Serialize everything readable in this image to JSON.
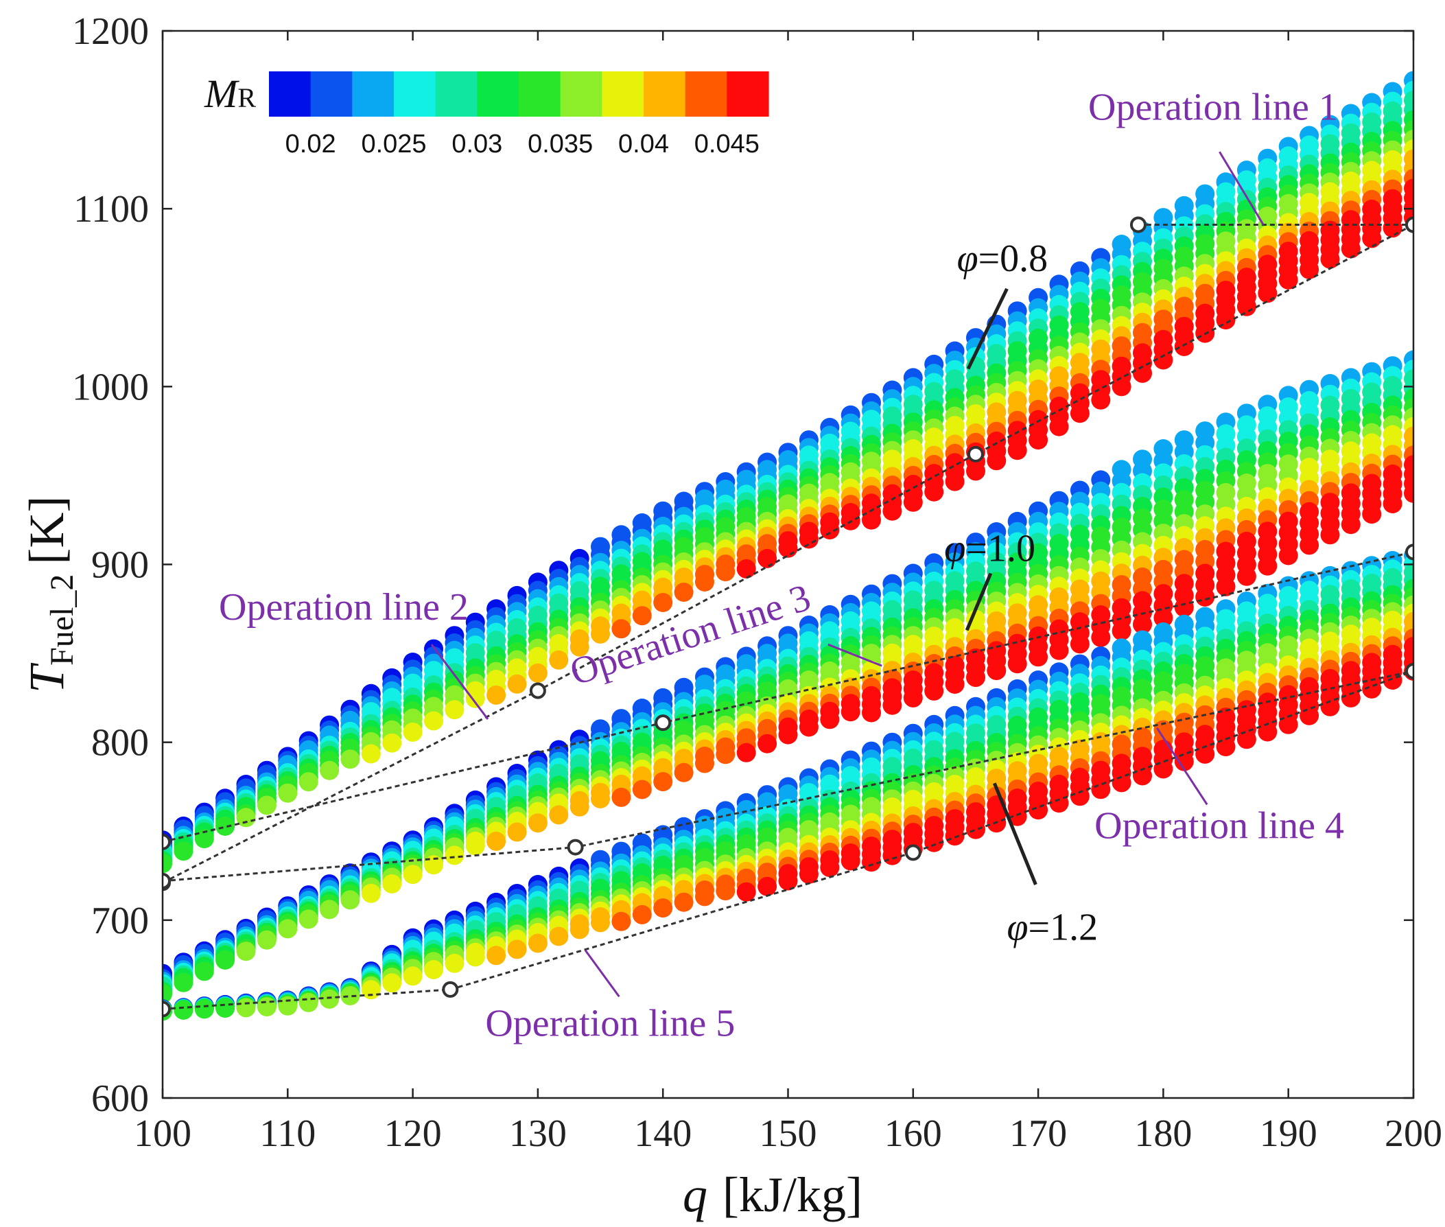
{
  "chart_data": {
    "type": "scatter",
    "xlabel": {
      "symbol": "q",
      "units": "[kJ/kg]"
    },
    "ylabel": {
      "symbol": "T",
      "subscript": "Fuel_2",
      "units": "[K]"
    },
    "xlim": [
      100,
      200
    ],
    "ylim": [
      600,
      1200
    ],
    "xticks": [
      "100",
      "110",
      "120",
      "130",
      "140",
      "150",
      "160",
      "170",
      "180",
      "190",
      "200"
    ],
    "yticks": [
      "600",
      "700",
      "800",
      "900",
      "1000",
      "1100",
      "1200"
    ],
    "colorbar": {
      "title_main": "M",
      "title_sub": "R",
      "range": [
        0.0175,
        0.0475
      ],
      "tick_labels": [
        "0.02",
        "0.025",
        "0.03",
        "0.035",
        "0.04",
        "0.045"
      ],
      "tick_values": [
        0.02,
        0.025,
        0.03,
        0.035,
        0.04,
        0.045
      ],
      "colors": [
        "#0010e8",
        "#0a55f0",
        "#0aa8f2",
        "#12f0e6",
        "#10e6a0",
        "#0ae646",
        "#2ae62a",
        "#8cee28",
        "#e6f20a",
        "#ffb400",
        "#ff5a00",
        "#ff0a0a"
      ]
    },
    "bands": [
      {
        "name": "φ=0.8",
        "upper": [
          [
            100,
            745
          ],
          [
            110,
            792
          ],
          [
            120,
            845
          ],
          [
            130,
            890
          ],
          [
            140,
            930
          ],
          [
            150,
            963
          ],
          [
            160,
            1005
          ],
          [
            170,
            1050
          ],
          [
            180,
            1095
          ],
          [
            190,
            1135
          ],
          [
            200,
            1172
          ]
        ],
        "lower": [
          [
            100,
            722
          ],
          [
            110,
            760
          ],
          [
            120,
            790
          ],
          [
            130,
            825
          ],
          [
            140,
            870
          ],
          [
            150,
            905
          ],
          [
            160,
            935
          ],
          [
            170,
            970
          ],
          [
            180,
            1015
          ],
          [
            190,
            1060
          ],
          [
            200,
            1095
          ]
        ]
      },
      {
        "name": "φ=1.0",
        "upper": [
          [
            100,
            670
          ],
          [
            110,
            708
          ],
          [
            120,
            745
          ],
          [
            130,
            790
          ],
          [
            140,
            825
          ],
          [
            150,
            860
          ],
          [
            160,
            895
          ],
          [
            170,
            930
          ],
          [
            180,
            965
          ],
          [
            190,
            995
          ],
          [
            200,
            1015
          ]
        ],
        "lower": [
          [
            100,
            650
          ],
          [
            110,
            688
          ],
          [
            120,
            718
          ],
          [
            130,
            745
          ],
          [
            140,
            770
          ],
          [
            150,
            800
          ],
          [
            160,
            825
          ],
          [
            170,
            848
          ],
          [
            180,
            870
          ],
          [
            190,
            905
          ],
          [
            200,
            940
          ]
        ]
      },
      {
        "name": "φ=1.2",
        "upper": [
          [
            100,
            650
          ],
          [
            110,
            655
          ],
          [
            115,
            662
          ],
          [
            120,
            690
          ],
          [
            130,
            720
          ],
          [
            140,
            748
          ],
          [
            150,
            775
          ],
          [
            160,
            805
          ],
          [
            170,
            835
          ],
          [
            180,
            862
          ],
          [
            190,
            888
          ],
          [
            200,
            905
          ]
        ],
        "lower": [
          [
            100,
            648
          ],
          [
            110,
            650
          ],
          [
            115,
            655
          ],
          [
            120,
            660
          ],
          [
            130,
            678
          ],
          [
            140,
            700
          ],
          [
            150,
            718
          ],
          [
            160,
            740
          ],
          [
            170,
            762
          ],
          [
            180,
            785
          ],
          [
            190,
            810
          ],
          [
            200,
            840
          ]
        ]
      }
    ],
    "operation_lines": [
      {
        "name": "Operation line 1",
        "points": [
          [
            178,
            1091
          ],
          [
            200,
            1091
          ]
        ]
      },
      {
        "name": "Operation line 2",
        "points": [
          [
            100,
            721
          ],
          [
            130,
            829
          ],
          [
            165,
            962
          ],
          [
            200,
            1091
          ]
        ]
      },
      {
        "name": "Operation line 3",
        "points": [
          [
            100,
            744
          ],
          [
            140,
            811
          ],
          [
            200,
            907
          ]
        ]
      },
      {
        "name": "Operation line 4",
        "points": [
          [
            100,
            722
          ],
          [
            133,
            741
          ],
          [
            200,
            840
          ]
        ]
      },
      {
        "name": "Operation line 5",
        "points": [
          [
            100,
            650
          ],
          [
            123,
            661
          ],
          [
            160,
            738
          ],
          [
            200,
            840
          ]
        ]
      }
    ],
    "annotations": [
      {
        "text": "Operation line 1",
        "kind": "op",
        "x": 174,
        "y": 1150,
        "pointer": [
          [
            184.5,
            1132
          ],
          [
            188,
            1091
          ]
        ]
      },
      {
        "text": "Operation line 2",
        "kind": "op",
        "x": 104.5,
        "y": 869,
        "pointer": [
          [
            121.5,
            855
          ],
          [
            126,
            813
          ]
        ]
      },
      {
        "text": "Operation line 3",
        "kind": "op",
        "x": 133,
        "y": 832,
        "rotate": -18,
        "pointer": [
          [
            153.2,
            855
          ],
          [
            157.5,
            843
          ]
        ]
      },
      {
        "text": "Operation line 4",
        "kind": "op",
        "x": 174.5,
        "y": 746,
        "pointer": [
          [
            179.5,
            808
          ],
          [
            183.5,
            765
          ]
        ]
      },
      {
        "text": "Operation line 5",
        "kind": "op",
        "x": 125.8,
        "y": 635,
        "pointer": [
          [
            133.8,
            683
          ],
          [
            136.5,
            657
          ]
        ]
      },
      {
        "text": "φ=0.8",
        "kind": "phi",
        "x": 163.5,
        "y": 1065,
        "pointer": [
          [
            167.5,
            1055
          ],
          [
            164.4,
            1010
          ]
        ]
      },
      {
        "text": "φ=1.0",
        "kind": "phi",
        "x": 162.5,
        "y": 902,
        "pointer": [
          [
            166.2,
            895
          ],
          [
            164.3,
            863
          ]
        ]
      },
      {
        "text": "φ=1.2",
        "kind": "phi",
        "x": 167.5,
        "y": 689,
        "pointer": [
          [
            169.8,
            720
          ],
          [
            166.5,
            777
          ]
        ]
      }
    ]
  }
}
